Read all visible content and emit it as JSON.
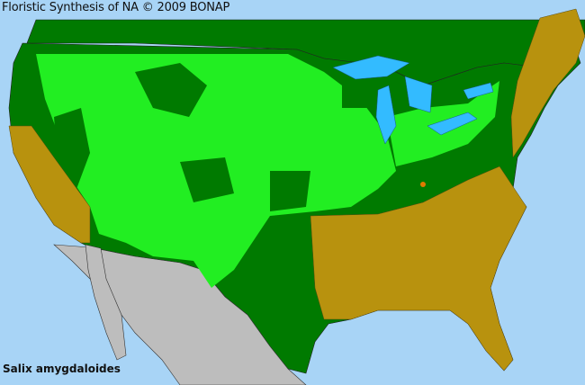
{
  "header": {
    "title": "Floristic Synthesis of NA © 2009 BONAP"
  },
  "map": {
    "species": "Salix amygdaloides",
    "colors": {
      "ocean": "#a8d4f6",
      "lakes": "#33bbff",
      "present_in_state": "#007a00",
      "present_in_county": "#22ee22",
      "absent_from_state": "#b8920e",
      "rare_county": "#e07a00",
      "outside_region": "#bdbdbd",
      "borders": "#333333"
    }
  }
}
